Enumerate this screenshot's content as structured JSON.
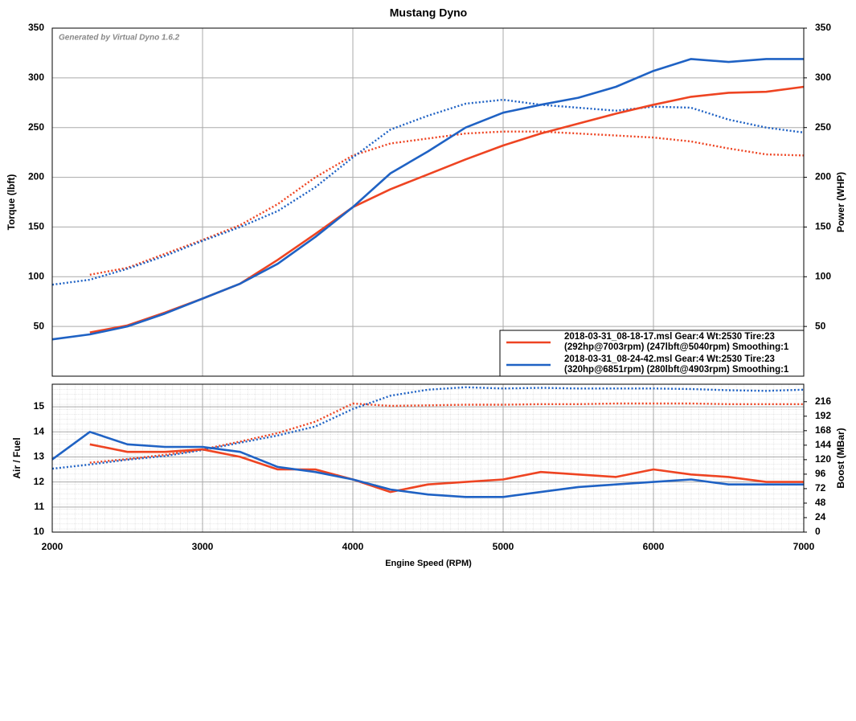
{
  "chart_data": {
    "type": "line",
    "title": "Mustang Dyno",
    "annotation": "Generated by Virtual Dyno 1.6.2",
    "x_label": "Engine Speed (RPM)",
    "xlim": [
      2000,
      7000
    ],
    "xticks": [
      2000,
      3000,
      4000,
      5000,
      6000,
      7000
    ],
    "x": [
      2000,
      2250,
      2500,
      2750,
      3000,
      3250,
      3500,
      3750,
      4000,
      4250,
      4500,
      4750,
      5000,
      5250,
      5500,
      5750,
      6000,
      6250,
      6500,
      6750,
      7000
    ],
    "grid": true,
    "panels": [
      {
        "y_label": "Torque (lbft)",
        "y2_label": "Power (WHP)",
        "ylim": [
          0,
          350
        ],
        "yticks": [
          50,
          100,
          150,
          200,
          250,
          300,
          350
        ],
        "y2lim": [
          0,
          350
        ],
        "y2ticks": [
          50,
          100,
          150,
          200,
          250,
          300,
          350
        ],
        "series": [
          {
            "color": "#ee4422",
            "dashed": true,
            "axis": "y",
            "values": [
              null,
              102,
              109,
              123,
              137,
              152,
              173,
              200,
              222,
              234,
              239,
              244,
              246,
              246,
              244,
              242,
              240,
              236,
              229,
              223,
              222
            ]
          },
          {
            "color": "#1f62c4",
            "dashed": true,
            "axis": "y",
            "values": [
              92,
              97,
              108,
              121,
              136,
              150,
              166,
              190,
              220,
              248,
              262,
              274,
              278,
              273,
              270,
              267,
              271,
              270,
              258,
              250,
              245
            ]
          },
          {
            "color": "#ee4422",
            "dashed": false,
            "axis": "y2",
            "values": [
              null,
              44,
              51,
              64,
              78,
              93,
              117,
              143,
              170,
              188,
              203,
              218,
              232,
              244,
              254,
              264,
              273,
              281,
              285,
              286,
              291
            ]
          },
          {
            "color": "#1f62c4",
            "dashed": false,
            "axis": "y2",
            "values": [
              37,
              42,
              50,
              63,
              78,
              93,
              113,
              140,
              170,
              204,
              226,
              250,
              265,
              273,
              280,
              291,
              307,
              319,
              316,
              319,
              319
            ]
          }
        ]
      },
      {
        "y_label": "Air / Fuel",
        "y2_label": "Boost (MBar)",
        "ylim": [
          10,
          15.9
        ],
        "yticks": [
          10,
          11,
          12,
          13,
          14,
          15
        ],
        "y2lim": [
          0,
          245
        ],
        "y2ticks": [
          0,
          24,
          48,
          72,
          96,
          120,
          144,
          168,
          192,
          216
        ],
        "series": [
          {
            "color": "#ee4422",
            "dashed": true,
            "axis": "y2",
            "values": [
              null,
              115,
              121,
              128,
              137,
              150,
              164,
              183,
              213,
              209,
              210,
              211,
              211,
              212,
              212,
              213,
              213,
              213,
              212,
              212,
              212
            ]
          },
          {
            "color": "#1f62c4",
            "dashed": true,
            "axis": "y2",
            "values": [
              105,
              112,
              120,
              126,
              136,
              148,
              160,
              175,
              204,
              226,
              236,
              240,
              238,
              239,
              238,
              238,
              238,
              237,
              235,
              234,
              236
            ]
          },
          {
            "color": "#ee4422",
            "dashed": false,
            "axis": "y",
            "values": [
              null,
              13.5,
              13.2,
              13.2,
              13.3,
              13.0,
              12.5,
              12.5,
              12.1,
              11.6,
              11.9,
              12.0,
              12.1,
              12.4,
              12.3,
              12.2,
              12.5,
              12.3,
              12.2,
              12.0,
              12.0
            ]
          },
          {
            "color": "#1f62c4",
            "dashed": false,
            "axis": "y",
            "values": [
              12.9,
              14.0,
              13.5,
              13.4,
              13.4,
              13.2,
              12.6,
              12.4,
              12.1,
              11.7,
              11.5,
              11.4,
              11.4,
              11.6,
              11.8,
              11.9,
              12.0,
              12.1,
              11.9,
              11.9,
              11.9
            ]
          }
        ]
      }
    ],
    "legend": [
      {
        "color": "#ee4422",
        "lines": [
          "2018-03-31_08-18-17.msl Gear:4 Wt:2530 Tire:23",
          "(292hp@7003rpm) (247lbft@5040rpm) Smoothing:1"
        ]
      },
      {
        "color": "#1f62c4",
        "lines": [
          "2018-03-31_08-24-42.msl Gear:4 Wt:2530 Tire:23",
          "(320hp@6851rpm) (280lbft@4903rpm) Smoothing:1"
        ]
      }
    ]
  }
}
